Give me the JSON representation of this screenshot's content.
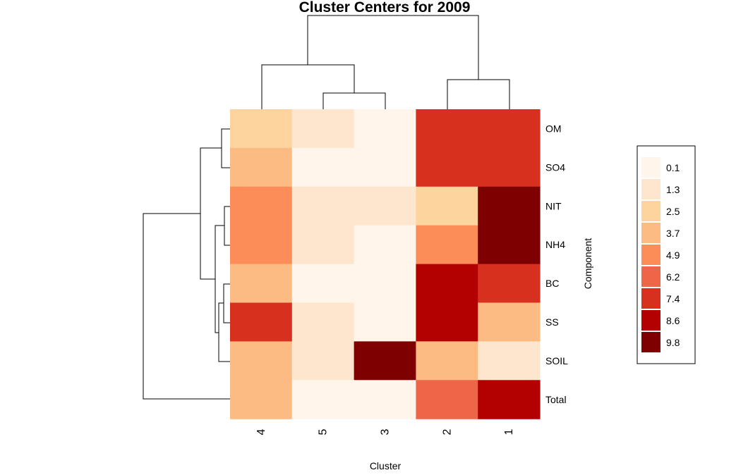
{
  "chart_data": {
    "type": "heatmap",
    "title": "Cluster Centers for 2009",
    "xlabel": "Cluster",
    "ylabel": "Component",
    "columns": [
      "4",
      "5",
      "3",
      "2",
      "1"
    ],
    "rows": [
      "OM",
      "SO4",
      "NIT",
      "NH4",
      "BC",
      "SS",
      "SOIL",
      "Total"
    ],
    "values": [
      [
        2.5,
        1.3,
        0.1,
        7.4,
        7.4
      ],
      [
        3.7,
        0.1,
        0.1,
        7.4,
        7.4
      ],
      [
        4.9,
        1.3,
        1.3,
        2.5,
        9.8
      ],
      [
        4.9,
        1.3,
        0.1,
        4.9,
        9.8
      ],
      [
        3.7,
        0.1,
        0.1,
        8.6,
        7.4
      ],
      [
        7.4,
        1.3,
        0.1,
        8.6,
        3.7
      ],
      [
        3.7,
        1.3,
        9.8,
        3.7,
        1.3
      ],
      [
        3.7,
        0.1,
        0.1,
        6.2,
        8.6
      ]
    ],
    "legend": {
      "position": "right",
      "entries": [
        {
          "label": "0.1",
          "color": "#FFF5EB"
        },
        {
          "label": "1.3",
          "color": "#FEE6CE"
        },
        {
          "label": "2.5",
          "color": "#FDD49E"
        },
        {
          "label": "3.7",
          "color": "#FDBB84"
        },
        {
          "label": "4.9",
          "color": "#FC8D59"
        },
        {
          "label": "6.2",
          "color": "#EF6548"
        },
        {
          "label": "7.4",
          "color": "#D7301F"
        },
        {
          "label": "8.6",
          "color": "#B30000"
        },
        {
          "label": "9.8",
          "color": "#7F0000"
        }
      ]
    }
  }
}
